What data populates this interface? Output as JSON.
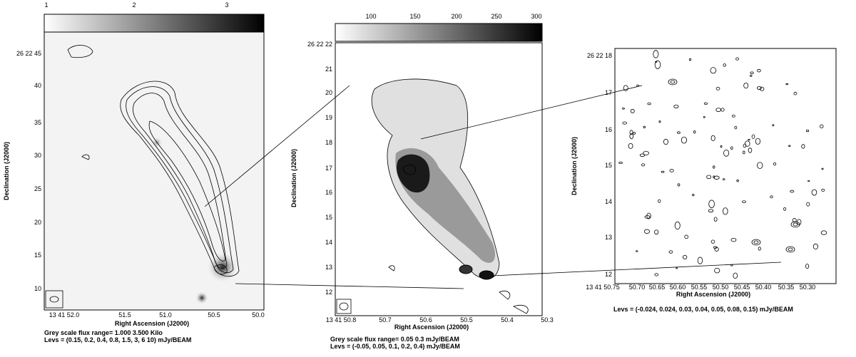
{
  "panels": [
    {
      "colorbar_ticks": [
        "1",
        "2",
        "3"
      ],
      "y_ticks": [
        "26 22 45",
        "40",
        "35",
        "30",
        "25",
        "20",
        "15",
        "10"
      ],
      "x_ticks": [
        "13 41 52.0",
        "51.5",
        "51.0",
        "50.5",
        "50.0"
      ],
      "x_label": "Right Ascension (J2000)",
      "y_label": "Declination (J2000)",
      "captions": [
        "Grey scale flux range= 1.000 3.500 Kilo",
        "Levs = (0.15, 0.2, 0.4, 0.8, 1.5, 3, 6 10) mJy/BEAM"
      ]
    },
    {
      "colorbar_ticks": [
        "100",
        "150",
        "200",
        "250",
        "300"
      ],
      "y_ticks": [
        "26 22 22",
        "21",
        "20",
        "19",
        "18",
        "17",
        "16",
        "15",
        "14",
        "13",
        "12"
      ],
      "x_ticks": [
        "13 41 50.8",
        "50.7",
        "50.6",
        "50.5",
        "50.4",
        "50.3"
      ],
      "x_label": "Right Ascension (J2000)",
      "y_label": "Declination (J2000)",
      "captions": [
        "Grey scale flux range= 0.05 0.3 mJy/BEAM",
        "Levs = (-0.05, 0.05, 0.1, 0.2, 0.4) mJy/BEAM"
      ]
    },
    {
      "y_ticks": [
        "26 22 18",
        "17",
        "16",
        "15",
        "14",
        "13",
        "12"
      ],
      "x_ticks": [
        "13 41 50.75",
        "50.70",
        "50.65",
        "50.60",
        "50.55",
        "50.50",
        "50.45",
        "50.40",
        "50.35",
        "50.30"
      ],
      "x_label": "Right Ascension (J2000)",
      "y_label": "Declination (J2000)",
      "captions": [
        "Levs = (-0.024, 0.024, 0.03, 0.04, 0.05, 0.08, 0.15) mJy/BEAM"
      ]
    }
  ]
}
